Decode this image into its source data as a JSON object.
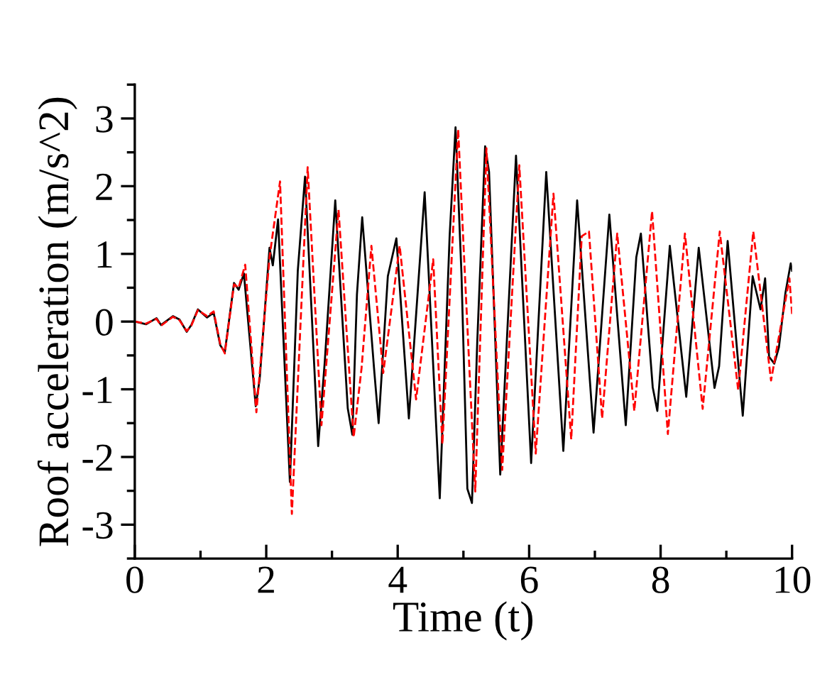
{
  "chart_data": {
    "type": "line",
    "xlabel": "Time (t)",
    "ylabel": "Roof acceleration (m/s^2)",
    "xlim": [
      0,
      10
    ],
    "ylim": [
      -3.5,
      3.5
    ],
    "xticks": [
      0,
      {
        "value": 1,
        "label": null
      },
      2,
      {
        "value": 3,
        "label": null
      },
      4,
      {
        "value": 5,
        "label": null
      },
      6,
      {
        "value": 7,
        "label": null
      },
      8,
      {
        "value": 9,
        "label": null
      },
      10
    ],
    "yticks": [
      {
        "value": -3.5,
        "label": null
      },
      -3,
      {
        "value": -2.5,
        "label": null
      },
      -2,
      {
        "value": -1.5,
        "label": null
      },
      -1,
      {
        "value": -0.5,
        "label": null
      },
      0,
      {
        "value": 0.5,
        "label": null
      },
      1,
      {
        "value": 1.5,
        "label": null
      },
      2,
      {
        "value": 2.5,
        "label": null
      },
      3,
      {
        "value": 3.5,
        "label": null
      }
    ],
    "grid": false,
    "series": [
      {
        "color": "#000000",
        "line_style": "solid",
        "x": [
          0,
          0.17,
          0.33,
          0.4,
          0.58,
          0.68,
          0.79,
          0.86,
          0.96,
          1.1,
          1.2,
          1.3,
          1.37,
          1.51,
          1.58,
          1.66,
          1.84,
          1.9,
          2.05,
          2.1,
          2.18,
          2.36,
          2.48,
          2.59,
          2.79,
          2.89,
          3.05,
          3.24,
          3.31,
          3.38,
          3.46,
          3.64,
          3.71,
          3.85,
          3.98,
          4.17,
          4.41,
          4.64,
          4.79,
          4.88,
          4.97,
          5.06,
          5.13,
          5.21,
          5.33,
          5.39,
          5.56,
          5.8,
          6.03,
          6.26,
          6.52,
          6.73,
          6.98,
          7.22,
          7.47,
          7.63,
          7.7,
          7.88,
          7.95,
          8.14,
          8.39,
          8.58,
          8.82,
          8.89,
          9.02,
          9.25,
          9.4,
          9.52,
          9.59,
          9.65,
          9.73,
          9.8,
          9.9,
          9.98,
          10.0
        ],
        "values": [
          0,
          -0.04,
          0.05,
          -0.05,
          0.08,
          0.03,
          -0.15,
          -0.05,
          0.18,
          0.06,
          0.13,
          -0.35,
          -0.45,
          0.57,
          0.47,
          0.71,
          -1.25,
          -0.85,
          1.09,
          0.83,
          1.51,
          -2.37,
          0.75,
          2.14,
          -1.84,
          -0.6,
          1.79,
          -1.28,
          -1.67,
          0.4,
          1.54,
          -0.69,
          -1.5,
          0.67,
          1.23,
          -1.43,
          1.91,
          -2.61,
          1.26,
          2.87,
          0.71,
          -2.47,
          -2.68,
          -0.31,
          2.59,
          2.21,
          -2.26,
          2.45,
          -2.09,
          2.21,
          -1.91,
          1.79,
          -1.64,
          1.58,
          -1.53,
          0.95,
          1.3,
          -0.97,
          -1.32,
          1.12,
          -1.11,
          1.09,
          -0.98,
          -0.66,
          1.19,
          -1.39,
          0.67,
          0.18,
          0.64,
          -0.52,
          -0.62,
          -0.38,
          0.43,
          0.86,
          0.75
        ]
      },
      {
        "color": "#ff0000",
        "line_style": "dashed",
        "x": [
          0,
          0.17,
          0.33,
          0.4,
          0.58,
          0.68,
          0.79,
          0.86,
          0.96,
          1.1,
          1.2,
          1.3,
          1.37,
          1.51,
          1.58,
          1.68,
          1.85,
          2.05,
          2.21,
          2.39,
          2.63,
          2.84,
          3.1,
          3.33,
          3.45,
          3.6,
          3.78,
          4.03,
          4.28,
          4.54,
          4.68,
          4.92,
          5.0,
          5.18,
          5.35,
          5.59,
          5.85,
          6.1,
          6.37,
          6.64,
          6.8,
          6.91,
          7.11,
          7.34,
          7.6,
          7.87,
          8.11,
          8.37,
          8.64,
          8.9,
          9.18,
          9.41,
          9.68,
          9.96,
          10.0
        ],
        "values": [
          0,
          -0.03,
          0.04,
          -0.06,
          0.07,
          0.02,
          -0.14,
          -0.06,
          0.17,
          0.08,
          0.15,
          -0.33,
          -0.47,
          0.55,
          0.5,
          0.84,
          -1.34,
          0.95,
          2.07,
          -2.84,
          2.28,
          -1.53,
          1.65,
          -1.71,
          -0.69,
          1.12,
          -0.76,
          1.12,
          -1.15,
          0.92,
          -1.81,
          2.84,
          1.16,
          -2.51,
          2.56,
          -2.19,
          2.31,
          -1.95,
          1.89,
          -1.74,
          1.26,
          1.33,
          -1.43,
          1.3,
          -1.32,
          1.63,
          -1.66,
          1.3,
          -1.29,
          1.33,
          -1.01,
          1.33,
          -0.87,
          0.64,
          0.11
        ]
      }
    ]
  }
}
